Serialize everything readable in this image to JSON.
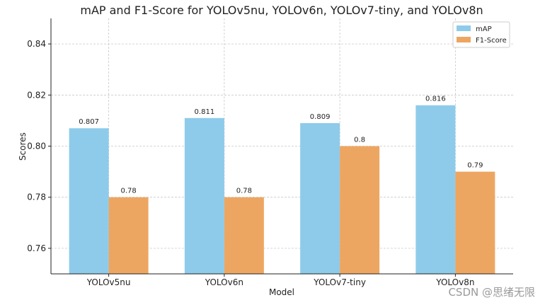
{
  "chart_data": {
    "type": "bar",
    "title": "mAP and F1-Score for YOLOv5nu, YOLOv6n, YOLOv7-tiny, and YOLOv8n",
    "xlabel": "Model",
    "ylabel": "Scores",
    "categories": [
      "YOLOv5nu",
      "YOLOv6n",
      "YOLOv7-tiny",
      "YOLOv8n"
    ],
    "series": [
      {
        "name": "mAP",
        "values": [
          0.807,
          0.811,
          0.809,
          0.816
        ],
        "labels": [
          "0.807",
          "0.811",
          "0.809",
          "0.816"
        ],
        "color": "#8ecbea"
      },
      {
        "name": "F1-Score",
        "values": [
          0.78,
          0.78,
          0.8,
          0.79
        ],
        "labels": [
          "0.78",
          "0.78",
          "0.8",
          "0.79"
        ],
        "color": "#eda662"
      }
    ],
    "ylim": [
      0.75,
      0.85
    ],
    "yticks": [
      0.76,
      0.78,
      0.8,
      0.82,
      0.84
    ],
    "ytick_labels": [
      "0.76",
      "0.78",
      "0.80",
      "0.82",
      "0.84"
    ],
    "grid": true,
    "legend": "top-right"
  },
  "watermark": "CSDN @思绪无限"
}
